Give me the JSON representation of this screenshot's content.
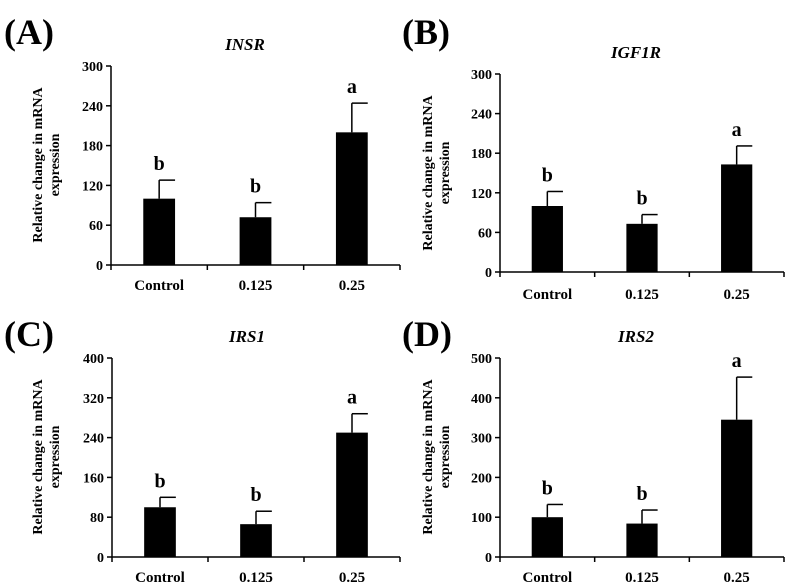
{
  "chart_data": [
    {
      "type": "bar",
      "panel_label": "(A)",
      "title": "INSR",
      "ylabel_line1": "Relative change in mRNA",
      "ylabel_line2": "expression",
      "xlabel": "",
      "categories": [
        "Control",
        "0.125",
        "0.25"
      ],
      "values": [
        100,
        72,
        200
      ],
      "errors": [
        28,
        22,
        44
      ],
      "significance": [
        "b",
        "b",
        "a"
      ],
      "ylim": [
        0,
        300
      ],
      "yticks": [
        0,
        60,
        120,
        180,
        240,
        300
      ],
      "bar_color": "#000000",
      "grid": false
    },
    {
      "type": "bar",
      "panel_label": "(B)",
      "title": "IGF1R",
      "ylabel_line1": "Relative change in mRNA",
      "ylabel_line2": "expression",
      "xlabel": "",
      "categories": [
        "Control",
        "0.125",
        "0.25"
      ],
      "values": [
        100,
        73,
        163
      ],
      "errors": [
        22,
        14,
        28
      ],
      "significance": [
        "b",
        "b",
        "a"
      ],
      "ylim": [
        0,
        300
      ],
      "yticks": [
        0,
        60,
        120,
        180,
        240,
        300
      ],
      "bar_color": "#000000",
      "grid": false
    },
    {
      "type": "bar",
      "panel_label": "(C)",
      "title": "IRS1",
      "ylabel_line1": "Relative change in mRNA",
      "ylabel_line2": "expression",
      "xlabel": "",
      "categories": [
        "Control",
        "0.125",
        "0.25"
      ],
      "values": [
        100,
        66,
        250
      ],
      "errors": [
        20,
        26,
        38
      ],
      "significance": [
        "b",
        "b",
        "a"
      ],
      "ylim": [
        0,
        400
      ],
      "yticks": [
        0,
        80,
        160,
        240,
        320,
        400
      ],
      "bar_color": "#000000",
      "grid": false
    },
    {
      "type": "bar",
      "panel_label": "(D)",
      "title": "IRS2",
      "ylabel_line1": "Relative change in mRNA",
      "ylabel_line2": "expression",
      "xlabel": "",
      "categories": [
        "Control",
        "0.125",
        "0.25"
      ],
      "values": [
        100,
        84,
        345
      ],
      "errors": [
        32,
        34,
        107
      ],
      "significance": [
        "b",
        "b",
        "a"
      ],
      "ylim": [
        0,
        500
      ],
      "yticks": [
        0,
        100,
        200,
        300,
        400,
        500
      ],
      "bar_color": "#000000",
      "grid": false
    }
  ]
}
